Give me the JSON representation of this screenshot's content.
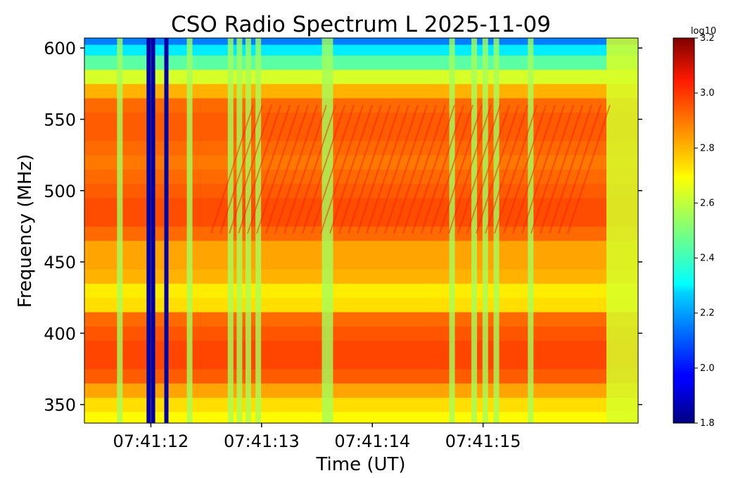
{
  "chart_data": {
    "type": "heatmap",
    "title": "CSO Radio Spectrum L 2025-11-09",
    "xlabel": "Time (UT)",
    "ylabel": "Frequency (MHz)",
    "x_ticks": [
      "07:41:12",
      "07:41:13",
      "07:41:14",
      "07:41:15"
    ],
    "x_tick_values_s": [
      12,
      13,
      14,
      15
    ],
    "xlim_s": [
      11.4,
      16.4
    ],
    "y_ticks": [
      350,
      400,
      450,
      500,
      550,
      600
    ],
    "ylim": [
      337,
      607
    ],
    "colorbar": {
      "label": "log10",
      "ticks": [
        1.8,
        2.0,
        2.2,
        2.4,
        2.6,
        2.8,
        3.0,
        3.2
      ],
      "vmin": 1.8,
      "vmax": 3.2,
      "colormap": "jet"
    },
    "frequency_profile": {
      "freqs": [
        340,
        350,
        360,
        370,
        380,
        390,
        400,
        410,
        420,
        430,
        440,
        450,
        460,
        470,
        480,
        490,
        500,
        510,
        520,
        530,
        540,
        550,
        560,
        570,
        580,
        590,
        600,
        605
      ],
      "values": [
        2.68,
        2.72,
        2.8,
        2.9,
        2.93,
        2.93,
        2.91,
        2.88,
        2.72,
        2.7,
        2.78,
        2.8,
        2.8,
        2.88,
        2.92,
        2.92,
        2.9,
        2.88,
        2.86,
        2.88,
        2.9,
        2.9,
        2.88,
        2.78,
        2.62,
        2.45,
        2.3,
        2.15
      ]
    },
    "dark_columns_s": [
      11.98,
      12.02,
      12.14
    ],
    "light_columns_s": [
      11.72,
      12.35,
      12.72,
      12.8,
      12.88,
      12.97,
      13.57,
      13.62,
      14.72,
      14.92,
      15.02,
      15.12,
      15.43
    ]
  }
}
